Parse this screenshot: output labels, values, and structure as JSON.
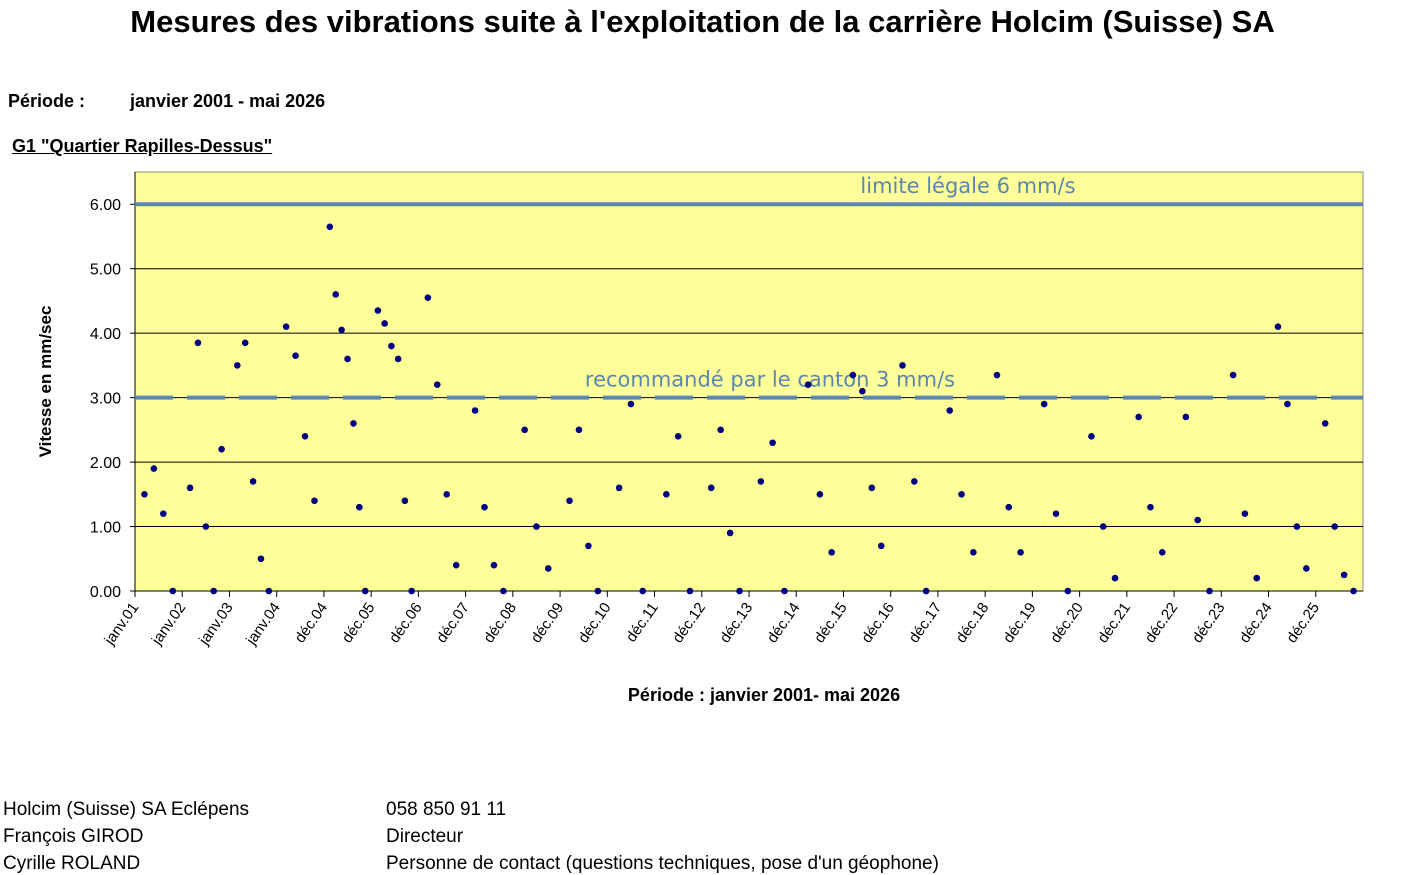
{
  "header": {
    "title": "Mesures des vibrations suite à l'exploitation de la carrière Holcim (Suisse) SA",
    "period_label": "Période :",
    "period_value": "janvier 2001 - mai 2026",
    "station": "G1 \"Quartier Rapilles-Dessus\""
  },
  "chart_data": {
    "type": "scatter",
    "title": "",
    "xlabel": "Période : janvier 2001- mai 2026",
    "ylabel": "Vitesse en mm/sec",
    "ylim": [
      0,
      6.5
    ],
    "y_ticks": [
      "0.00",
      "1.00",
      "2.00",
      "3.00",
      "4.00",
      "5.00",
      "6.00"
    ],
    "x_tick_labels": [
      "janv.01",
      "janv.02",
      "janv.03",
      "janv.04",
      "déc.04",
      "déc.05",
      "déc.06",
      "déc.07",
      "déc.08",
      "déc.09",
      "déc.10",
      "déc.11",
      "déc.12",
      "déc.13",
      "déc.14",
      "déc.15",
      "déc.16",
      "déc.17",
      "déc.18",
      "déc.19",
      "déc.20",
      "déc.21",
      "déc.22",
      "déc.23",
      "déc.24",
      "déc.25"
    ],
    "background_color": "#ffff99",
    "point_color": "#000080",
    "line_color": "#5b86b0",
    "grid": "horizontal",
    "reference_lines": [
      {
        "y": 6,
        "style": "solid",
        "label": "limite légale 6 mm/s"
      },
      {
        "y": 3,
        "style": "dashed",
        "label": "recommandé par le canton 3 mm/s"
      }
    ],
    "series": [
      {
        "points": [
          [
            "janv.01",
            1.5
          ],
          [
            "janv.01",
            1.9
          ],
          [
            "janv.01",
            1.2
          ],
          [
            "janv.01",
            0.0
          ],
          [
            "janv.02",
            1.6
          ],
          [
            "janv.02",
            3.85
          ],
          [
            "janv.02",
            1.0
          ],
          [
            "janv.02",
            0.0
          ],
          [
            "janv.02",
            2.2
          ],
          [
            "janv.03",
            3.5
          ],
          [
            "janv.03",
            3.85
          ],
          [
            "janv.03",
            1.7
          ],
          [
            "janv.03",
            0.5
          ],
          [
            "janv.03",
            0.0
          ],
          [
            "janv.04",
            4.1
          ],
          [
            "janv.04",
            3.65
          ],
          [
            "janv.04",
            2.4
          ],
          [
            "janv.04",
            1.4
          ],
          [
            "déc.04",
            5.65
          ],
          [
            "déc.04",
            4.6
          ],
          [
            "déc.04",
            4.05
          ],
          [
            "déc.04",
            3.6
          ],
          [
            "déc.04",
            2.6
          ],
          [
            "déc.04",
            1.3
          ],
          [
            "déc.04",
            0.0
          ],
          [
            "déc.05",
            4.35
          ],
          [
            "déc.05",
            4.15
          ],
          [
            "déc.05",
            3.8
          ],
          [
            "déc.05",
            3.6
          ],
          [
            "déc.05",
            1.4
          ],
          [
            "déc.05",
            0.0
          ],
          [
            "déc.06",
            4.55
          ],
          [
            "déc.06",
            3.2
          ],
          [
            "déc.06",
            1.5
          ],
          [
            "déc.06",
            0.4
          ],
          [
            "déc.07",
            2.8
          ],
          [
            "déc.07",
            1.3
          ],
          [
            "déc.07",
            0.4
          ],
          [
            "déc.07",
            0.0
          ],
          [
            "déc.08",
            2.5
          ],
          [
            "déc.08",
            1.0
          ],
          [
            "déc.08",
            0.35
          ],
          [
            "déc.09",
            1.4
          ],
          [
            "déc.09",
            2.5
          ],
          [
            "déc.09",
            0.7
          ],
          [
            "déc.09",
            0.0
          ],
          [
            "déc.10",
            1.6
          ],
          [
            "déc.10",
            2.9
          ],
          [
            "déc.10",
            0.0
          ],
          [
            "déc.11",
            1.5
          ],
          [
            "déc.11",
            2.4
          ],
          [
            "déc.11",
            0.0
          ],
          [
            "déc.12",
            1.6
          ],
          [
            "déc.12",
            2.5
          ],
          [
            "déc.12",
            0.9
          ],
          [
            "déc.12",
            0.0
          ],
          [
            "déc.13",
            1.7
          ],
          [
            "déc.13",
            2.3
          ],
          [
            "déc.13",
            0.0
          ],
          [
            "déc.14",
            3.2
          ],
          [
            "déc.14",
            1.5
          ],
          [
            "déc.14",
            0.6
          ],
          [
            "déc.15",
            3.35
          ],
          [
            "déc.15",
            3.1
          ],
          [
            "déc.15",
            1.6
          ],
          [
            "déc.15",
            0.7
          ],
          [
            "déc.16",
            3.5
          ],
          [
            "déc.16",
            1.7
          ],
          [
            "déc.16",
            0.0
          ],
          [
            "déc.17",
            2.8
          ],
          [
            "déc.17",
            1.5
          ],
          [
            "déc.17",
            0.6
          ],
          [
            "déc.18",
            3.35
          ],
          [
            "déc.18",
            1.3
          ],
          [
            "déc.18",
            0.6
          ],
          [
            "déc.19",
            2.9
          ],
          [
            "déc.19",
            1.2
          ],
          [
            "déc.19",
            0.0
          ],
          [
            "déc.20",
            2.4
          ],
          [
            "déc.20",
            1.0
          ],
          [
            "déc.20",
            0.2
          ],
          [
            "déc.21",
            2.7
          ],
          [
            "déc.21",
            1.3
          ],
          [
            "déc.21",
            0.6
          ],
          [
            "déc.22",
            2.7
          ],
          [
            "déc.22",
            1.1
          ],
          [
            "déc.22",
            0.0
          ],
          [
            "déc.23",
            3.35
          ],
          [
            "déc.23",
            1.2
          ],
          [
            "déc.23",
            0.2
          ],
          [
            "déc.24",
            4.1
          ],
          [
            "déc.24",
            2.9
          ],
          [
            "déc.24",
            1.0
          ],
          [
            "déc.24",
            0.35
          ],
          [
            "déc.25",
            2.6
          ],
          [
            "déc.25",
            1.0
          ],
          [
            "déc.25",
            0.25
          ],
          [
            "déc.25",
            0.0
          ]
        ]
      }
    ]
  },
  "footer": {
    "rows": [
      {
        "left": "Holcim (Suisse) SA Eclépens",
        "right": "058 850 91 11"
      },
      {
        "left": "François GIROD",
        "right": "Directeur"
      },
      {
        "left": "Cyrille ROLAND",
        "right": "Personne de contact (questions techniques, pose d'un géophone)"
      }
    ]
  }
}
